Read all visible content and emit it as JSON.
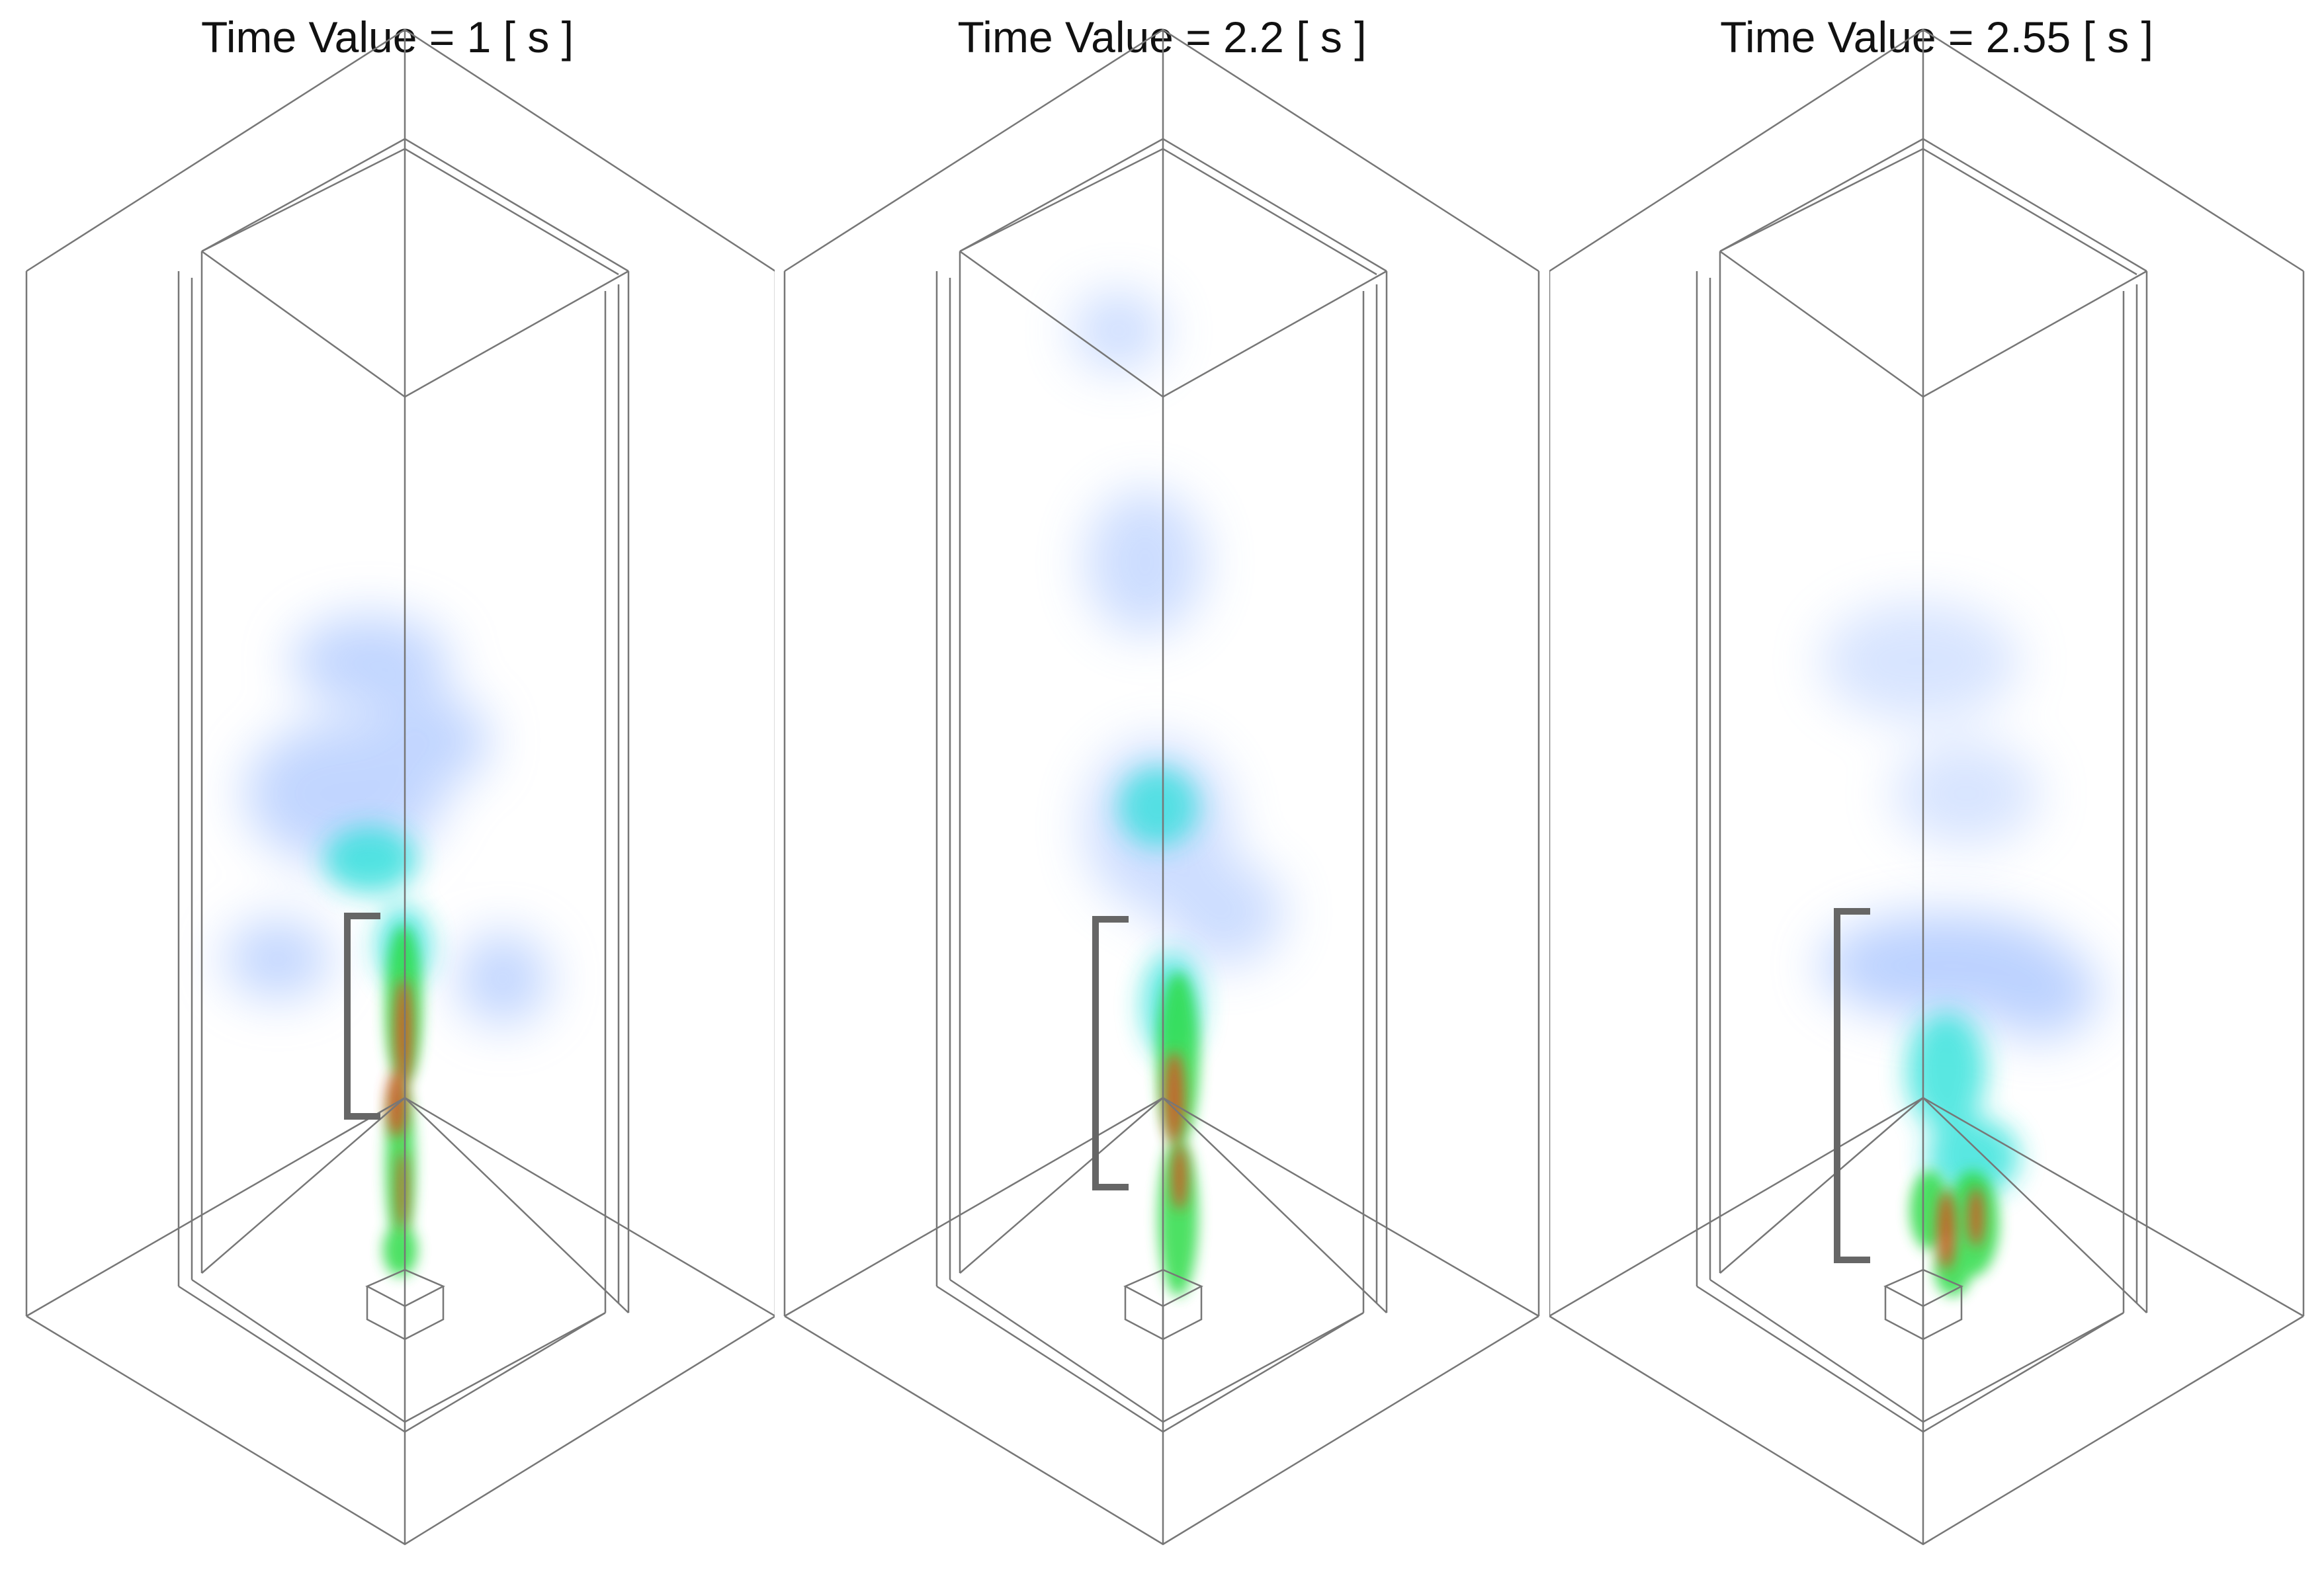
{
  "panels": [
    {
      "title": "Time Value = 1 [ s ]",
      "plume_colors": [
        "#8fb4ff",
        "#22e0d8",
        "#2fdc4a",
        "#e04a1c"
      ]
    },
    {
      "title": "Time Value = 2.2 [ s ]",
      "plume_colors": [
        "#8fb4ff",
        "#22e0d8",
        "#2fdc4a",
        "#e04a1c"
      ]
    },
    {
      "title": "Time Value = 2.55 [ s ]",
      "plume_colors": [
        "#8fb4ff",
        "#22e0d8",
        "#2fdc4a",
        "#e04a1c"
      ]
    }
  ]
}
